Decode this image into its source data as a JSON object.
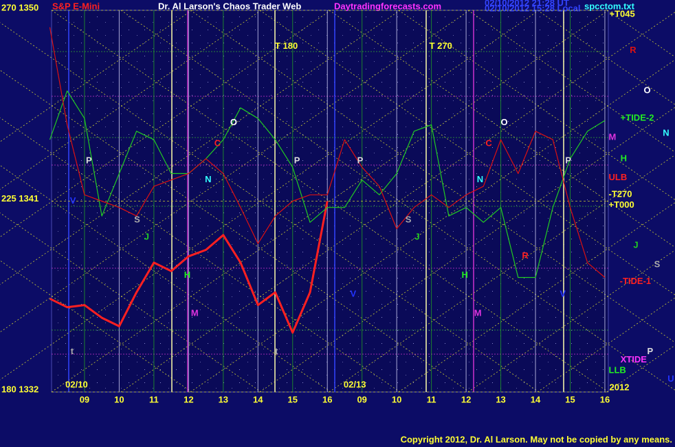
{
  "chart_data": {
    "type": "line",
    "title": "Dr. Al Larson's Chaos Trader Web",
    "subtitle": "S&P E-Mini",
    "site": "Daytradingforecasts.com",
    "timestamps": [
      "02/10/2012 21:28 UT",
      "02/10/2012 15:28 Local"
    ],
    "file": "spcctom.txt",
    "copyright": "Copyright 2012, Dr. Al Larson. May not be copied by any means.",
    "xlim": [
      -0.95,
      15.1
    ],
    "xticks": [
      {
        "value": 0,
        "label": "09"
      },
      {
        "value": 1,
        "label": "10"
      },
      {
        "value": 2,
        "label": "11"
      },
      {
        "value": 3,
        "label": "12"
      },
      {
        "value": 4,
        "label": "13"
      },
      {
        "value": 5,
        "label": "14"
      },
      {
        "value": 6,
        "label": "15"
      },
      {
        "value": 7,
        "label": "16"
      },
      {
        "value": 8,
        "label": "09"
      },
      {
        "value": 9,
        "label": "10"
      },
      {
        "value": 10,
        "label": "11"
      },
      {
        "value": 11,
        "label": "12"
      },
      {
        "value": 12,
        "label": "13"
      },
      {
        "value": 13,
        "label": "14"
      },
      {
        "value": 14,
        "label": "15"
      },
      {
        "value": 15,
        "label": "16"
      }
    ],
    "ylim": [
      1332,
      1350
    ],
    "yticks": [
      {
        "value": 1350,
        "label": "270  1350"
      },
      {
        "value": 1341,
        "label": "225  1341"
      },
      {
        "value": 1332,
        "label": "180  1332"
      }
    ],
    "x": [
      -1,
      -0.5,
      0,
      0.5,
      1,
      1.5,
      2,
      2.5,
      3,
      3.5,
      4,
      4.5,
      5,
      5.5,
      6,
      6.5,
      7,
      7.5,
      8,
      8.5,
      9,
      9.5,
      10,
      10.5,
      11,
      11.5,
      12,
      12.5,
      13,
      13.5,
      14,
      14.5,
      15
    ],
    "series": [
      {
        "name": "Price",
        "color": "#ff2020",
        "width": 3,
        "values": [
          1336.4,
          1336.0,
          1336.1,
          1335.5,
          1335.1,
          1336.7,
          1338.1,
          1337.7,
          1338.4,
          1338.7,
          1339.4,
          1338.1,
          1336.1,
          1336.7,
          1334.8,
          1336.7,
          1341.0,
          null,
          null,
          null,
          null,
          null,
          null,
          null,
          null,
          null,
          null,
          null,
          null,
          null,
          null,
          null,
          null
        ]
      },
      {
        "name": "Green EF",
        "color": "#22cc22",
        "width": 1.2,
        "values": [
          1343.9,
          1346.2,
          1344.9,
          1340.3,
          1342.3,
          1344.3,
          1343.9,
          1342.3,
          1342.3,
          1343.0,
          1343.9,
          1345.4,
          1344.9,
          1343.9,
          1342.6,
          1340.0,
          1340.7,
          1340.7,
          1342.0,
          1341.3,
          1342.3,
          1344.3,
          1344.6,
          1340.3,
          1340.7,
          1340.0,
          1340.7,
          1337.4,
          1337.4,
          1340.7,
          1343.0,
          1344.3,
          1344.8
        ]
      },
      {
        "name": "Red EF",
        "color": "#dd1111",
        "width": 1.2,
        "values": [
          1349.2,
          1344.6,
          1341.3,
          1341.0,
          1340.7,
          1340.3,
          1341.7,
          1342.0,
          1342.3,
          1343.0,
          1342.3,
          1340.7,
          1339.0,
          1340.3,
          1341.0,
          1341.3,
          1341.3,
          1343.9,
          1342.6,
          1341.7,
          1339.7,
          1340.7,
          1341.3,
          1340.7,
          1341.3,
          1341.7,
          1343.9,
          1342.3,
          1344.3,
          1343.9,
          1340.7,
          1338.1,
          1337.4
        ]
      }
    ],
    "dates": [
      {
        "text": "02/10",
        "x": -0.55,
        "y": 1332.2
      },
      {
        "text": "02/13",
        "x": 7.47,
        "y": 1332.2
      }
    ],
    "annotations": [
      {
        "text": "T   180",
        "x": 5.49,
        "y": 1348.3,
        "color": "#ffff33"
      },
      {
        "text": "T   270",
        "x": 9.94,
        "y": 1348.3,
        "color": "#ffff33"
      },
      {
        "text": "O",
        "x": 4.2,
        "y": 1344.7,
        "color": "#ffffff"
      },
      {
        "text": "C",
        "x": 3.74,
        "y": 1343.7,
        "color": "#ff2020"
      },
      {
        "text": "P",
        "x": 0.04,
        "y": 1342.9,
        "color": "#dddddd"
      },
      {
        "text": "P",
        "x": 6.04,
        "y": 1342.9,
        "color": "#dddddd"
      },
      {
        "text": "P",
        "x": 7.86,
        "y": 1342.9,
        "color": "#dddddd"
      },
      {
        "text": "N",
        "x": 3.47,
        "y": 1342.0,
        "color": "#33ffff"
      },
      {
        "text": "S",
        "x": 1.43,
        "y": 1340.1,
        "color": "#aaaaaa"
      },
      {
        "text": "J",
        "x": 1.72,
        "y": 1339.3,
        "color": "#22cc22"
      },
      {
        "text": "H",
        "x": 2.87,
        "y": 1337.5,
        "color": "#22ee22"
      },
      {
        "text": "M",
        "x": 3.07,
        "y": 1335.7,
        "color": "#dd33dd"
      },
      {
        "text": "S",
        "x": 9.25,
        "y": 1340.1,
        "color": "#aaaaaa"
      },
      {
        "text": "J",
        "x": 9.52,
        "y": 1339.3,
        "color": "#22cc22"
      },
      {
        "text": "H",
        "x": 10.87,
        "y": 1337.5,
        "color": "#22ee22"
      },
      {
        "text": "M",
        "x": 11.23,
        "y": 1335.7,
        "color": "#dd33dd"
      },
      {
        "text": "O",
        "x": 12.0,
        "y": 1344.7,
        "color": "#ffffff"
      },
      {
        "text": "C",
        "x": 11.56,
        "y": 1343.7,
        "color": "#ff2020"
      },
      {
        "text": "N",
        "x": 11.31,
        "y": 1342.0,
        "color": "#33ffff"
      },
      {
        "text": "P",
        "x": 13.86,
        "y": 1342.9,
        "color": "#dddddd"
      },
      {
        "text": "R",
        "x": 12.61,
        "y": 1338.4,
        "color": "#ff2020"
      },
      {
        "text": "V",
        "x": 13.7,
        "y": 1336.6,
        "color": "#2233ff"
      },
      {
        "text": "V",
        "x": 7.66,
        "y": 1336.6,
        "color": "#2233ff"
      },
      {
        "text": "V",
        "x": -0.42,
        "y": 1341.0,
        "color": "#2233ff"
      },
      {
        "text": "t",
        "x": -0.4,
        "y": 1333.9,
        "color": "#aaaaaa"
      },
      {
        "text": "t",
        "x": 5.49,
        "y": 1333.9,
        "color": "#aaaaaa"
      },
      {
        "text": "+T045",
        "x": 15.13,
        "y": 1349.8,
        "color": "#ffff33"
      },
      {
        "text": "R",
        "x": 15.72,
        "y": 1348.1,
        "color": "#dd1111"
      },
      {
        "text": "O",
        "x": 16.12,
        "y": 1346.2,
        "color": "#ffffff"
      },
      {
        "text": "+TIDE-2",
        "x": 15.45,
        "y": 1344.9,
        "color": "#22ee22"
      },
      {
        "text": "N",
        "x": 16.67,
        "y": 1344.2,
        "color": "#33ffff"
      },
      {
        "text": "M",
        "x": 15.11,
        "y": 1344.0,
        "color": "#dd33dd"
      },
      {
        "text": "H",
        "x": 15.45,
        "y": 1343.0,
        "color": "#22ee22"
      },
      {
        "text": "ULB",
        "x": 15.11,
        "y": 1342.1,
        "color": "#ff2020"
      },
      {
        "text": "-T270",
        "x": 15.11,
        "y": 1341.3,
        "color": "#ffff33"
      },
      {
        "text": "+T000",
        "x": 15.11,
        "y": 1340.8,
        "color": "#ffff33"
      },
      {
        "text": "J",
        "x": 15.82,
        "y": 1338.9,
        "color": "#22cc22"
      },
      {
        "text": "S",
        "x": 16.42,
        "y": 1338.0,
        "color": "#aaaaaa"
      },
      {
        "text": "-TIDE-1",
        "x": 15.43,
        "y": 1337.2,
        "color": "#ff2020"
      },
      {
        "text": "XTIDE",
        "x": 15.45,
        "y": 1333.5,
        "color": "#ff33ff"
      },
      {
        "text": "P",
        "x": 16.22,
        "y": 1333.9,
        "color": "#dddddd"
      },
      {
        "text": "LLB",
        "x": 15.11,
        "y": 1333.0,
        "color": "#22ee22"
      },
      {
        "text": "U",
        "x": 16.81,
        "y": 1332.6,
        "color": "#2233ff"
      },
      {
        "text": "2012",
        "x": 15.13,
        "y": 1332.2,
        "color": "#ffff33"
      }
    ]
  }
}
